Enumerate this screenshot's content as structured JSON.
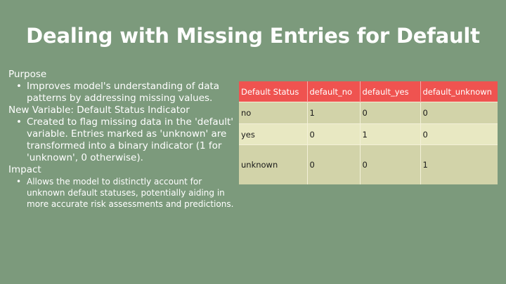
{
  "slide": {
    "title": "Dealing with Missing Entries for Default"
  },
  "sections": [
    {
      "heading": "Purpose",
      "bullets": [
        "Improves model's understanding of data patterns by addressing missing values."
      ]
    },
    {
      "heading": "New Variable: Default Status Indicator",
      "bullets": [
        "Created to flag missing data in the 'default' variable. Entries marked as 'unknown' are transformed into a binary indicator (1 for 'unknown', 0 otherwise)."
      ]
    },
    {
      "heading": "Impact",
      "bullets": [
        "Allows the model to distinctly account for unknown default statuses, potentially aiding in more accurate risk assessments and predictions."
      ]
    }
  ],
  "table": {
    "headers": [
      "Default Status",
      "default_no",
      "default_yes",
      "default_unknown"
    ],
    "rows": [
      [
        "no",
        "1",
        "0",
        "0"
      ],
      [
        "yes",
        "0",
        "1",
        "0"
      ],
      [
        "unknown",
        "0",
        "0",
        "1"
      ]
    ]
  },
  "colors": {
    "background": "#7c9a7c",
    "header": "#ef5350",
    "row_dark": "#d2d3a9",
    "row_light": "#e8e8c2",
    "text": "#ffffff"
  }
}
